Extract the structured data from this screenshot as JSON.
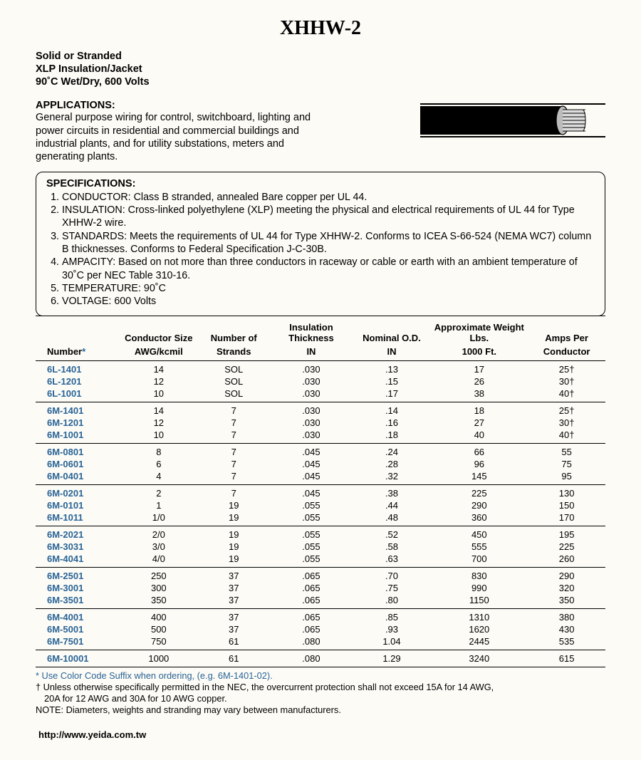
{
  "title": "XHHW-2",
  "subhead_lines": [
    "Solid or Stranded",
    "XLP Insulation/Jacket",
    "90˚C Wet/Dry, 600 Volts"
  ],
  "applications_label": "APPLICATIONS:",
  "applications_text": "General purpose wiring for control, switchboard, lighting and power circuits in residential and commercial buildings and industrial plants, and for utility substations, meters and generating plants.",
  "specifications_label": "SPECIFICATIONS:",
  "specifications": [
    "CONDUCTOR: Class B stranded, annealed Bare copper per UL 44.",
    "INSULATION: Cross-linked polyethylene (XLP) meeting the physical and electrical requirements of UL 44 for Type XHHW-2 wire.",
    "STANDARDS: Meets the requirements of UL 44 for Type XHHW-2. Conforms to ICEA S-66-524 (NEMA WC7) column B thicknesses. Conforms to Federal Specification J-C-30B.",
    "AMPACITY: Based on not more than three conductors in raceway or cable or earth with an ambient temperature of 30˚C per NEC Table 310-16.",
    "TEMPERATURE: 90˚C",
    "VOLTAGE: 600 Volts"
  ],
  "columns": {
    "number_top": "",
    "number_bottom": "Number",
    "number_ast": "*",
    "conductor_top": "Conductor Size",
    "conductor_bottom": "AWG/kcmil",
    "strands_top": "Number of",
    "strands_bottom": "Strands",
    "insul_top": "Insulation Thickness",
    "insul_bottom": "IN",
    "od_top": "Nominal O.D.",
    "od_bottom": "IN",
    "weight_top": "Approximate Weight Lbs.",
    "weight_bottom": "1000 Ft.",
    "amps_top": "Amps Per",
    "amps_bottom": "Conductor"
  },
  "groups": [
    [
      {
        "num": "6L-1401",
        "size": "14",
        "strands": "SOL",
        "insul": ".030",
        "od": ".13",
        "wt": "17",
        "amps": "25†"
      },
      {
        "num": "6L-1201",
        "size": "12",
        "strands": "SOL",
        "insul": ".030",
        "od": ".15",
        "wt": "26",
        "amps": "30†"
      },
      {
        "num": "6L-1001",
        "size": "10",
        "strands": "SOL",
        "insul": ".030",
        "od": ".17",
        "wt": "38",
        "amps": "40†"
      }
    ],
    [
      {
        "num": "6M-1401",
        "size": "14",
        "strands": "7",
        "insul": ".030",
        "od": ".14",
        "wt": "18",
        "amps": "25†"
      },
      {
        "num": "6M-1201",
        "size": "12",
        "strands": "7",
        "insul": ".030",
        "od": ".16",
        "wt": "27",
        "amps": "30†"
      },
      {
        "num": "6M-1001",
        "size": "10",
        "strands": "7",
        "insul": ".030",
        "od": ".18",
        "wt": "40",
        "amps": "40†"
      }
    ],
    [
      {
        "num": "6M-0801",
        "size": "8",
        "strands": "7",
        "insul": ".045",
        "od": ".24",
        "wt": "66",
        "amps": "55"
      },
      {
        "num": "6M-0601",
        "size": "6",
        "strands": "7",
        "insul": ".045",
        "od": ".28",
        "wt": "96",
        "amps": "75"
      },
      {
        "num": "6M-0401",
        "size": "4",
        "strands": "7",
        "insul": ".045",
        "od": ".32",
        "wt": "145",
        "amps": "95"
      }
    ],
    [
      {
        "num": "6M-0201",
        "size": "2",
        "strands": "7",
        "insul": ".045",
        "od": ".38",
        "wt": "225",
        "amps": "130"
      },
      {
        "num": "6M-0101",
        "size": "1",
        "strands": "19",
        "insul": ".055",
        "od": ".44",
        "wt": "290",
        "amps": "150"
      },
      {
        "num": "6M-1011",
        "size": "1/0",
        "strands": "19",
        "insul": ".055",
        "od": ".48",
        "wt": "360",
        "amps": "170"
      }
    ],
    [
      {
        "num": "6M-2021",
        "size": "2/0",
        "strands": "19",
        "insul": ".055",
        "od": ".52",
        "wt": "450",
        "amps": "195"
      },
      {
        "num": "6M-3031",
        "size": "3/0",
        "strands": "19",
        "insul": ".055",
        "od": ".58",
        "wt": "555",
        "amps": "225"
      },
      {
        "num": "6M-4041",
        "size": "4/0",
        "strands": "19",
        "insul": ".055",
        "od": ".63",
        "wt": "700",
        "amps": "260"
      }
    ],
    [
      {
        "num": "6M-2501",
        "size": "250",
        "strands": "37",
        "insul": ".065",
        "od": ".70",
        "wt": "830",
        "amps": "290"
      },
      {
        "num": "6M-3001",
        "size": "300",
        "strands": "37",
        "insul": ".065",
        "od": ".75",
        "wt": "990",
        "amps": "320"
      },
      {
        "num": "6M-3501",
        "size": "350",
        "strands": "37",
        "insul": ".065",
        "od": ".80",
        "wt": "1150",
        "amps": "350"
      }
    ],
    [
      {
        "num": "6M-4001",
        "size": "400",
        "strands": "37",
        "insul": ".065",
        "od": ".85",
        "wt": "1310",
        "amps": "380"
      },
      {
        "num": "6M-5001",
        "size": "500",
        "strands": "37",
        "insul": ".065",
        "od": ".93",
        "wt": "1620",
        "amps": "430"
      },
      {
        "num": "6M-7501",
        "size": "750",
        "strands": "61",
        "insul": ".080",
        "od": "1.04",
        "wt": "2445",
        "amps": "535"
      }
    ],
    [
      {
        "num": "6M-10001",
        "size": "1000",
        "strands": "61",
        "insul": ".080",
        "od": "1.29",
        "wt": "3240",
        "amps": "615"
      }
    ]
  ],
  "footnotes": {
    "star": "* Use Color Code Suffix when ordering, (e.g. 6M-1401-02).",
    "dagger_l1": "† Unless otherwise specifically permitted in the NEC, the overcurrent protection shall not exceed 15A for 14 AWG,",
    "dagger_l2": "20A for 12 AWG and 30A for 10 AWG copper.",
    "note": "NOTE: Diameters, weights and stranding may vary between manufacturers."
  },
  "url": "http://www.yeida.com.tw",
  "colors": {
    "bg": "#fcfbf6",
    "text": "#000000",
    "link_num": "#2a6496"
  }
}
